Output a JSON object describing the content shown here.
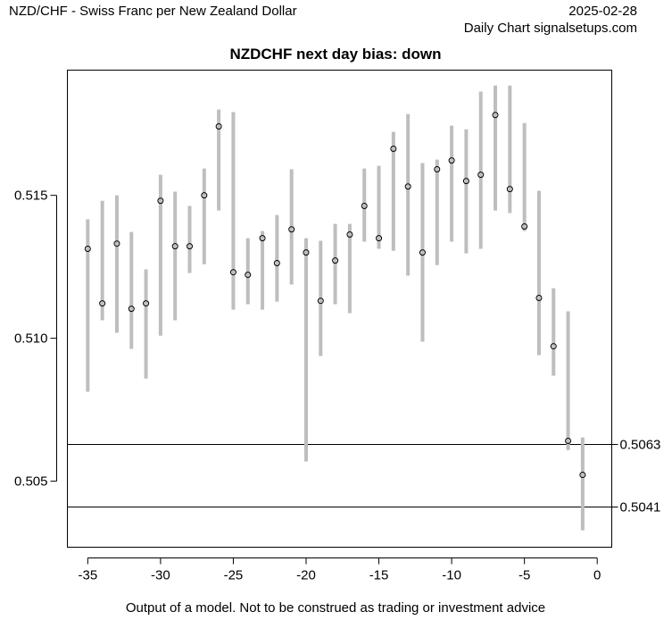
{
  "header": {
    "left_title": "NZD/CHF - Swiss Franc per New Zealand Dollar",
    "date": "2025-02-28",
    "subtitle": "Daily Chart signalsetups.com"
  },
  "footer": "Output of a model. Not to be construed as trading or investment advice",
  "chart_data": {
    "type": "scatter",
    "title": "NZDCHF next day bias: down",
    "xlabel": "",
    "ylabel": "",
    "xlim": [
      -36.4,
      1.0
    ],
    "ylim": [
      0.50269,
      0.51938
    ],
    "grid": false,
    "x_ticks": [
      -35,
      -30,
      -25,
      -20,
      -15,
      -10,
      -5,
      0
    ],
    "x_tick_labels": [
      "-35",
      "-30",
      "-25",
      "-20",
      "-15",
      "-10",
      "-5",
      "0"
    ],
    "y_ticks": [
      0.505,
      0.51,
      0.515
    ],
    "y_tick_labels": [
      "0.505",
      "0.510",
      "0.515"
    ],
    "colors": {
      "range_bar": "#bebebe",
      "point": "#000000",
      "level_line": "#000000"
    },
    "series": [
      {
        "x": [
          -35,
          -34,
          -33,
          -32,
          -31,
          -30,
          -29,
          -28,
          -27,
          -26,
          -25,
          -24,
          -23,
          -22,
          -21,
          -20,
          -19,
          -18,
          -17,
          -16,
          -15,
          -14,
          -13,
          -12,
          -11,
          -10,
          -9,
          -8,
          -7,
          -6,
          -5,
          -4,
          -3,
          -2,
          -1
        ],
        "y": [
          0.51313,
          0.51122,
          0.51331,
          0.51103,
          0.51122,
          0.51481,
          0.51322,
          0.51322,
          0.515,
          0.51741,
          0.51231,
          0.51222,
          0.5135,
          0.51263,
          0.51381,
          0.513,
          0.51131,
          0.51272,
          0.51363,
          0.51463,
          0.5135,
          0.51663,
          0.51531,
          0.513,
          0.51591,
          0.51622,
          0.5155,
          0.51572,
          0.51781,
          0.51522,
          0.51391,
          0.51141,
          0.50972,
          0.50641,
          0.50522
        ],
        "high": [
          0.51416,
          0.51481,
          0.515,
          0.51372,
          0.51241,
          0.51572,
          0.51513,
          0.51463,
          0.51594,
          0.518,
          0.51791,
          0.5135,
          0.51375,
          0.51431,
          0.51591,
          0.5135,
          0.51341,
          0.514,
          0.514,
          0.51594,
          0.51603,
          0.51722,
          0.51784,
          0.51613,
          0.51625,
          0.51744,
          0.51731,
          0.51863,
          0.51884,
          0.51884,
          0.51753,
          0.51516,
          0.51175,
          0.51094,
          0.50653
        ],
        "low": [
          0.50813,
          0.51063,
          0.51019,
          0.50963,
          0.50859,
          0.51009,
          0.51063,
          0.51228,
          0.51259,
          0.51447,
          0.511,
          0.51119,
          0.511,
          0.51128,
          0.51188,
          0.50569,
          0.50938,
          0.51119,
          0.51088,
          0.51338,
          0.51313,
          0.51306,
          0.51219,
          0.50988,
          0.51256,
          0.51338,
          0.51297,
          0.51313,
          0.51447,
          0.51438,
          0.51375,
          0.50941,
          0.50869,
          0.50609,
          0.50328
        ]
      }
    ],
    "levels": [
      {
        "value": 0.5063,
        "label": "0.5063"
      },
      {
        "value": 0.5041,
        "label": "0.5041"
      }
    ]
  }
}
